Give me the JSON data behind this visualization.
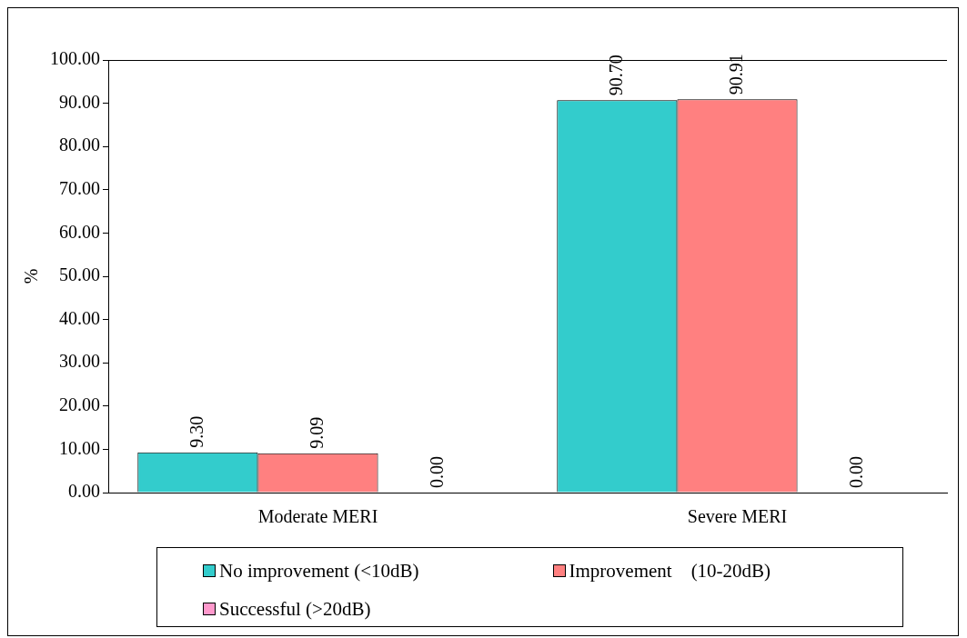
{
  "chart_data": {
    "type": "bar",
    "ylabel": "%",
    "categories": [
      "Moderate MERI",
      "Severe MERI"
    ],
    "series": [
      {
        "name": "No improvement (<10dB)",
        "color": "#33cccc",
        "values": [
          9.3,
          90.7
        ]
      },
      {
        "name": "Improvement    (10-20dB)",
        "color": "#ff8080",
        "values": [
          9.09,
          90.91
        ]
      },
      {
        "name": "Successful (>20dB)",
        "color": "#ff99cc",
        "values": [
          0.0,
          0.0
        ]
      }
    ],
    "ylim": [
      0,
      100
    ],
    "yticks": [
      {
        "value": 0,
        "label": "0.00"
      },
      {
        "value": 10,
        "label": "10.00"
      },
      {
        "value": 20,
        "label": "20.00"
      },
      {
        "value": 30,
        "label": "30.00"
      },
      {
        "value": 40,
        "label": "40.00"
      },
      {
        "value": 50,
        "label": "50.00"
      },
      {
        "value": 60,
        "label": "60.00"
      },
      {
        "value": 70,
        "label": "70.00"
      },
      {
        "value": 80,
        "label": "80.00"
      },
      {
        "value": 90,
        "label": "90.00"
      },
      {
        "value": 100,
        "label": "100.00"
      }
    ],
    "value_labels": [
      [
        "9.30",
        "90.70"
      ],
      [
        "9.09",
        "90.91"
      ],
      [
        "0.00",
        "0.00"
      ]
    ],
    "grid": false,
    "legend": "bottom"
  }
}
